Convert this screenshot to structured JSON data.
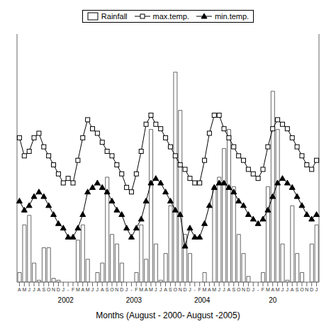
{
  "chart_data": {
    "type": "bar",
    "xlabel": "Months (August - 2000- August -2005)",
    "categories": [
      "A",
      "M",
      "J",
      "J",
      "A",
      "S",
      "O",
      "N",
      "D",
      "J",
      "-",
      "F",
      "M",
      "A",
      "M",
      "J",
      "J",
      "A",
      "S",
      "O",
      "N",
      "D",
      "J",
      "-",
      "F",
      "M",
      "A",
      "M",
      "J",
      "J",
      "A",
      "S",
      "O",
      "N",
      "D",
      "J",
      "-",
      "F",
      "M",
      "A",
      "M",
      "J",
      "J",
      "A",
      "S",
      "O",
      "N",
      "D",
      "J",
      "-",
      "F",
      "M",
      "A",
      "M",
      "J",
      "J",
      "A",
      "S",
      "O",
      "N",
      "D",
      "J"
    ],
    "series": [
      {
        "name": "Rainfall",
        "type": "bar",
        "color": "#ffffff",
        "values": [
          5,
          30,
          35,
          10,
          1,
          18,
          18,
          2,
          1,
          0,
          0,
          0,
          22,
          30,
          12,
          0,
          5,
          10,
          55,
          25,
          20,
          10,
          0,
          0,
          5,
          30,
          12,
          80,
          20,
          1,
          15,
          40,
          110,
          90,
          25,
          15,
          0,
          0,
          5,
          0,
          50,
          55,
          70,
          80,
          50,
          25,
          15,
          3,
          0,
          0,
          5,
          50,
          100,
          80,
          20,
          1,
          40,
          15,
          5,
          0,
          20,
          30
        ]
      },
      {
        "name": "max.temp.",
        "type": "line",
        "axis": "y2",
        "color": "#000000",
        "marker": "square",
        "values": [
          32,
          28,
          29,
          32,
          33,
          30,
          28,
          26,
          24,
          22,
          23,
          22,
          27,
          32,
          36,
          34,
          33,
          31,
          29,
          28,
          26,
          24,
          21,
          20,
          24,
          29,
          35,
          37,
          35,
          34,
          32,
          30,
          28,
          26,
          25,
          23,
          22,
          22,
          27,
          33,
          37,
          37,
          34,
          32,
          30,
          28,
          27,
          25,
          24,
          23,
          25,
          30,
          34,
          36,
          35,
          34,
          32,
          30,
          28,
          26,
          25,
          27
        ]
      },
      {
        "name": "min.temp.",
        "type": "line",
        "axis": "y2",
        "color": "#000000",
        "marker": "triangle",
        "values": [
          18,
          16,
          17,
          19,
          20,
          19,
          17,
          15,
          13,
          12,
          10,
          10,
          12,
          15,
          20,
          21,
          22,
          21,
          20,
          18,
          16,
          15,
          12,
          10,
          12,
          14,
          18,
          22,
          23,
          22,
          20,
          18,
          16,
          15,
          8,
          12,
          10,
          10,
          13,
          17,
          21,
          22,
          22,
          21,
          20,
          18,
          17,
          15,
          14,
          13,
          14,
          16,
          19,
          22,
          23,
          22,
          21,
          19,
          17,
          15,
          14,
          15
        ]
      }
    ],
    "ylim": [
      0,
      130
    ],
    "y2lim": [
      0,
      55
    ],
    "tick_labels": "x",
    "legend": "top",
    "grid": false,
    "annotations": [
      {
        "text": "2002",
        "x": 9.5
      },
      {
        "text": "2003",
        "x": 23.5
      },
      {
        "text": "2004",
        "x": 37.5
      },
      {
        "text": "20",
        "x": 52
      }
    ]
  }
}
